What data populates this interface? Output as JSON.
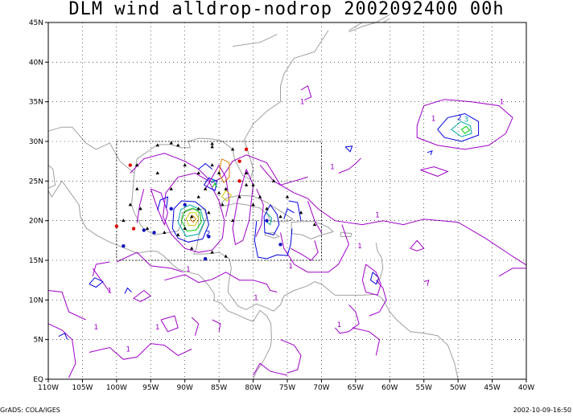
{
  "title": "DLM wind alldrop-nodrop 2002092400 00h",
  "footer_left": "GrADS: COLA/IGES",
  "footer_right": "2002-10-09-16:50",
  "lat_labels": [
    "EQ",
    "5N",
    "10N",
    "15N",
    "20N",
    "25N",
    "30N",
    "35N",
    "40N",
    "45N"
  ],
  "lon_labels": [
    "110W",
    "105W",
    "100W",
    "95W",
    "90W",
    "85W",
    "80W",
    "75W",
    "70W",
    "65W",
    "60W",
    "55W",
    "50W",
    "45W",
    "40W"
  ],
  "map": {
    "lon_range": [
      -110,
      -40
    ],
    "lat_range": [
      0,
      45
    ],
    "coast_color": "#a0a0a0",
    "grid_color": "#000000",
    "contour_colors": {
      "1": "#a000c8",
      "2": "#0000e0",
      "3": "#00aaaa",
      "4": "#00c800",
      "5": "#c8c800",
      "6": "#e08000"
    },
    "contour_labels": [
      {
        "text": "1",
        "lon": -72.8,
        "lat": 34.7
      },
      {
        "text": "1",
        "lon": -43.6,
        "lat": 34.7
      },
      {
        "text": "1",
        "lon": -53.6,
        "lat": 32.6
      },
      {
        "text": "2",
        "lon": -49.8,
        "lat": 32.7
      },
      {
        "text": "3",
        "lon": -48.8,
        "lat": 32.5
      },
      {
        "text": "1",
        "lon": -68.4,
        "lat": 26.5
      },
      {
        "text": "1",
        "lon": -61.8,
        "lat": 20.4
      },
      {
        "text": "1",
        "lon": -64.4,
        "lat": 16.5
      },
      {
        "text": "1",
        "lon": -67.4,
        "lat": 6.6
      },
      {
        "text": "1",
        "lon": -79.6,
        "lat": 10.0
      },
      {
        "text": "1",
        "lon": -89.5,
        "lat": 13.6
      },
      {
        "text": "2",
        "lon": -86.6,
        "lat": 18.1
      },
      {
        "text": "1",
        "lon": -103.0,
        "lat": 6.3
      },
      {
        "text": "1",
        "lon": -98.3,
        "lat": 3.5
      },
      {
        "text": "1",
        "lon": -94.0,
        "lat": 6.3
      },
      {
        "text": "1",
        "lon": -101.0,
        "lat": 10.9
      },
      {
        "text": "1",
        "lon": -74.5,
        "lat": 14.0
      }
    ],
    "obs_black": [
      [
        -97,
        27
      ],
      [
        -94,
        29.5
      ],
      [
        -91,
        29.5
      ],
      [
        -86,
        29.3
      ],
      [
        -83,
        29
      ],
      [
        -81,
        26
      ],
      [
        -80,
        24.5
      ],
      [
        -82,
        23
      ],
      [
        -84.5,
        22
      ],
      [
        -86.5,
        21
      ],
      [
        -88,
        21.5
      ],
      [
        -89,
        20.5
      ],
      [
        -90,
        19
      ],
      [
        -91,
        18.2
      ],
      [
        -93,
        18.5
      ],
      [
        -95.5,
        19
      ],
      [
        -96.5,
        21.5
      ],
      [
        -97,
        24
      ],
      [
        -92,
        24
      ],
      [
        -88,
        26
      ],
      [
        -85,
        26
      ],
      [
        -84,
        24
      ],
      [
        -79,
        23
      ],
      [
        -77,
        25
      ],
      [
        -75,
        23
      ],
      [
        -73,
        21
      ],
      [
        -71,
        19.5
      ],
      [
        -76,
        20.5
      ],
      [
        -78,
        21.5
      ],
      [
        -80,
        22
      ],
      [
        -83,
        20
      ],
      [
        -85,
        23.5
      ],
      [
        -87,
        24
      ],
      [
        -86,
        27
      ],
      [
        -90,
        27
      ],
      [
        -94,
        26
      ],
      [
        -98,
        22
      ],
      [
        -99,
        20
      ],
      [
        -89,
        16.5
      ],
      [
        -86,
        16
      ],
      [
        -84,
        15.5
      ],
      [
        -88,
        23
      ],
      [
        -81,
        24.5
      ],
      [
        -86,
        29.7
      ],
      [
        -92,
        29.8
      ]
    ],
    "obs_blue": [
      [
        -99,
        16.8
      ],
      [
        -96,
        18.8
      ],
      [
        -94.5,
        18.5
      ],
      [
        -87,
        15.2
      ],
      [
        -86.5,
        18
      ],
      [
        -78,
        20
      ],
      [
        -76,
        17
      ],
      [
        -90,
        22
      ],
      [
        -92,
        21.5
      ]
    ],
    "obs_red": [
      [
        -98,
        27
      ],
      [
        -100,
        19.3
      ],
      [
        -97.5,
        19
      ],
      [
        -82,
        27.5
      ],
      [
        -81,
        29
      ],
      [
        -82,
        25
      ]
    ],
    "domain_box": {
      "lon": [
        -100,
        -70
      ],
      "lat": [
        15,
        30
      ]
    }
  }
}
